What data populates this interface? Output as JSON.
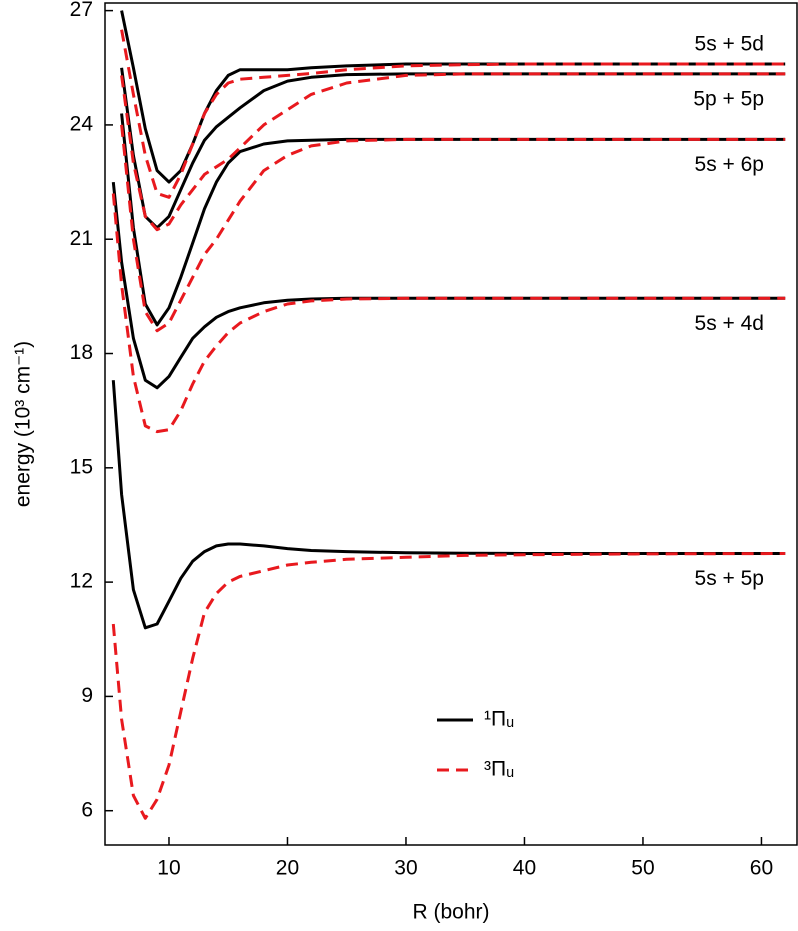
{
  "chart_data": {
    "type": "line",
    "x_label": "R (bohr)",
    "y_label": "energy (10³ cm⁻¹)",
    "xlim": [
      4.6,
      63
    ],
    "ylim": [
      5.1,
      27.2
    ],
    "xticks": [
      10,
      20,
      30,
      40,
      50,
      60
    ],
    "yticks": [
      6,
      9,
      12,
      15,
      18,
      21,
      24,
      27
    ],
    "states": [
      "5s + 5p",
      "5s + 4d",
      "5s + 6p",
      "5p + 5p",
      "5s + 5d"
    ],
    "x": [
      5.3,
      6,
      7,
      8,
      9,
      10,
      11,
      12,
      13,
      14,
      15,
      16,
      18,
      20,
      22,
      25,
      30,
      35,
      40,
      50,
      62
    ],
    "series": [
      {
        "name": "¹Πᵤ",
        "color": "#000000",
        "dashed": false,
        "values": [
          [
            17.3,
            14.3,
            11.8,
            10.8,
            10.9,
            11.5,
            12.1,
            12.55,
            12.8,
            12.95,
            13.0,
            13.0,
            12.95,
            12.88,
            12.83,
            12.8,
            12.77,
            12.76,
            12.75,
            12.75,
            12.75
          ],
          [
            22.5,
            20.4,
            18.4,
            17.3,
            17.1,
            17.4,
            17.9,
            18.4,
            18.7,
            18.95,
            19.1,
            19.2,
            19.33,
            19.4,
            19.43,
            19.45,
            19.45,
            19.45,
            19.45,
            19.45,
            19.45
          ],
          [
            null,
            24.3,
            21.3,
            19.3,
            18.75,
            19.2,
            20.0,
            20.9,
            21.8,
            22.5,
            23.0,
            23.3,
            23.5,
            23.58,
            23.6,
            23.62,
            23.62,
            23.62,
            23.62,
            23.62,
            23.62
          ],
          [
            null,
            25.5,
            23.2,
            21.6,
            21.3,
            21.6,
            22.3,
            23.0,
            23.6,
            23.95,
            24.2,
            24.45,
            24.9,
            25.15,
            25.25,
            25.32,
            25.34,
            25.34,
            25.34,
            25.34,
            25.34
          ],
          [
            null,
            27.0,
            25.5,
            23.9,
            22.8,
            22.5,
            22.8,
            23.5,
            24.3,
            24.9,
            25.3,
            25.45,
            25.45,
            25.45,
            25.5,
            25.55,
            25.6,
            25.6,
            25.6,
            25.6,
            25.6
          ]
        ]
      },
      {
        "name": "³Πᵤ",
        "color": "#e8191e",
        "dashed": true,
        "values": [
          [
            10.9,
            8.4,
            6.4,
            5.8,
            6.3,
            7.2,
            8.6,
            10.0,
            11.2,
            11.7,
            12.0,
            12.15,
            12.3,
            12.45,
            12.52,
            12.6,
            12.65,
            12.7,
            12.72,
            12.74,
            12.75
          ],
          [
            22.2,
            19.8,
            17.4,
            16.1,
            15.95,
            16.0,
            16.5,
            17.2,
            17.8,
            18.2,
            18.55,
            18.8,
            19.1,
            19.3,
            19.38,
            19.43,
            19.45,
            19.45,
            19.45,
            19.45,
            19.45
          ],
          [
            null,
            24.0,
            21.0,
            19.1,
            18.6,
            18.8,
            19.4,
            20.0,
            20.6,
            21.0,
            21.5,
            22.0,
            22.8,
            23.2,
            23.45,
            23.58,
            23.62,
            23.62,
            23.62,
            23.62,
            23.62
          ],
          [
            null,
            25.3,
            23.0,
            21.6,
            21.25,
            21.4,
            21.9,
            22.3,
            22.7,
            22.9,
            23.1,
            23.4,
            24.0,
            24.4,
            24.8,
            25.1,
            25.3,
            25.34,
            25.34,
            25.34,
            25.34
          ],
          [
            null,
            26.5,
            24.8,
            23.2,
            22.2,
            22.1,
            22.7,
            23.5,
            24.3,
            24.8,
            25.1,
            25.2,
            25.25,
            25.3,
            25.35,
            25.45,
            25.55,
            25.58,
            25.6,
            25.6,
            25.6
          ]
        ]
      }
    ]
  }
}
